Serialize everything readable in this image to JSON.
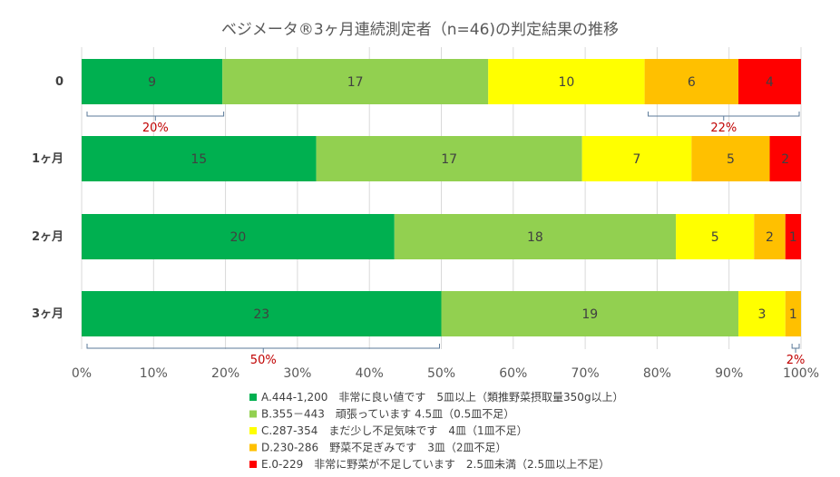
{
  "chart_data": {
    "type": "bar",
    "orientation": "horizontal",
    "stacked": "percent",
    "title": "ベジメータ®3ヶ月連続測定者（n=46)の判定結果の推移",
    "categories": [
      "0",
      "1ヶ月",
      "2ヶ月",
      "3ヶ月"
    ],
    "x_ticks": [
      "0%",
      "10%",
      "20%",
      "30%",
      "40%",
      "50%",
      "60%",
      "70%",
      "80%",
      "90%",
      "100%"
    ],
    "xlim": [
      0,
      100
    ],
    "grid": true,
    "legend_position": "bottom",
    "series": [
      {
        "name": "A.444-1,200　非常に良い値です　5皿以上（類推野菜摂取量350g以上）",
        "color": "#00b050",
        "values": [
          9,
          15,
          20,
          23
        ]
      },
      {
        "name": "B.355－443　頑張っています 4.5皿（0.5皿不足）",
        "color": "#92d050",
        "values": [
          17,
          17,
          18,
          19
        ]
      },
      {
        "name": "C.287-354　まだ少し不足気味です　4皿（1皿不足）",
        "color": "#ffff00",
        "values": [
          10,
          7,
          5,
          3
        ]
      },
      {
        "name": "D.230-286　野菜不足ぎみです　3皿（2皿不足）",
        "color": "#ffc000",
        "values": [
          6,
          5,
          2,
          1
        ]
      },
      {
        "name": "E.0-229　非常に野菜が不足しています　2.5皿未満（2.5皿以上不足）",
        "color": "#ff0000",
        "values": [
          4,
          2,
          1,
          0
        ]
      }
    ],
    "annotations": [
      {
        "text": "20%",
        "category": 0,
        "from_pct": 0,
        "to_pct": 20,
        "side": "below"
      },
      {
        "text": "22%",
        "category": 0,
        "from_pct": 78,
        "to_pct": 100,
        "side": "below"
      },
      {
        "text": "50%",
        "category": 3,
        "from_pct": 0,
        "to_pct": 50,
        "side": "below"
      },
      {
        "text": "2%",
        "category": 3,
        "from_pct": 98,
        "to_pct": 100,
        "side": "below"
      }
    ],
    "annotation_color": "#c00000",
    "bracket_color": "#5b7a99"
  }
}
